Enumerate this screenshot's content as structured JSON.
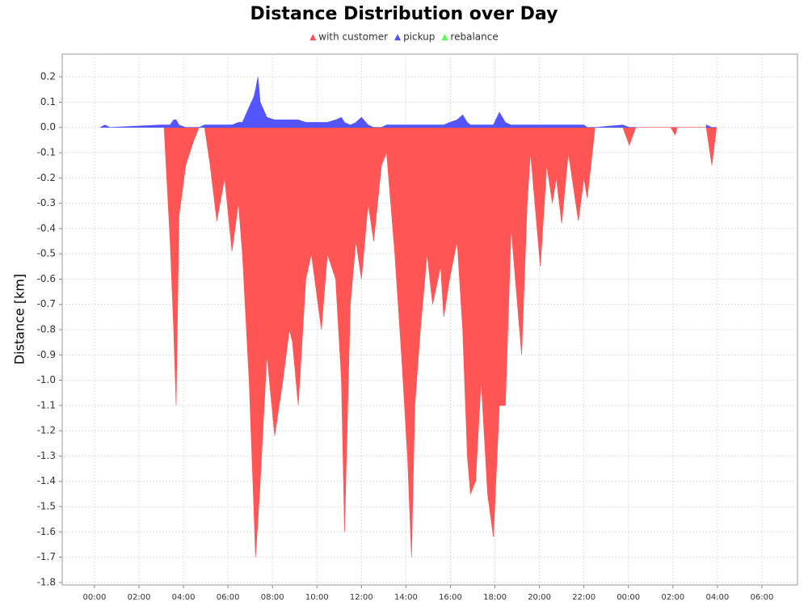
{
  "chart_data": {
    "type": "area",
    "title": "Distance Distribution over Day",
    "y_label": "Distance [km]",
    "x": [
      0.25,
      0.47,
      0.7,
      3.0,
      3.13,
      3.4,
      3.56,
      3.67,
      3.8,
      4.1,
      4.47,
      4.7,
      4.95,
      5.2,
      5.5,
      5.85,
      6.18,
      6.47,
      6.65,
      6.95,
      7.16,
      7.24,
      7.35,
      7.45,
      7.75,
      8.1,
      8.47,
      8.76,
      8.9,
      9.16,
      9.5,
      9.75,
      10.2,
      10.47,
      10.84,
      11.1,
      11.24,
      11.5,
      11.75,
      12.0,
      12.3,
      12.55,
      12.9,
      13.13,
      13.5,
      13.8,
      14.07,
      14.25,
      14.4,
      14.65,
      14.95,
      15.2,
      15.56,
      15.7,
      15.96,
      16.3,
      16.55,
      16.76,
      16.9,
      17.13,
      17.38,
      17.67,
      17.93,
      18.2,
      18.47,
      18.73,
      19.2,
      19.45,
      19.6,
      20.04,
      20.33,
      20.58,
      20.76,
      21.0,
      21.3,
      21.75,
      22.0,
      22.15,
      22.5,
      23.75,
      24.04,
      24.33,
      25.9,
      26.1,
      26.2,
      27.5,
      27.75,
      27.96
    ],
    "series": [
      {
        "name": "with customer",
        "color": "#ff5555",
        "values": [
          null,
          null,
          null,
          null,
          0,
          -0.45,
          -0.8,
          -1.1,
          -0.35,
          -0.15,
          -0.05,
          0,
          0,
          -0.15,
          -0.37,
          -0.2,
          -0.49,
          -0.3,
          -0.5,
          -1.0,
          -1.5,
          -1.7,
          -1.55,
          -1.4,
          -0.9,
          -1.22,
          -1.0,
          -0.8,
          -0.85,
          -1.1,
          -0.6,
          -0.5,
          -0.8,
          -0.5,
          -0.6,
          -1.0,
          -1.6,
          -0.7,
          -0.45,
          -0.6,
          -0.3,
          -0.45,
          -0.15,
          -0.1,
          -0.5,
          -0.9,
          -1.3,
          -1.7,
          -1.1,
          -0.8,
          -0.5,
          -0.7,
          -0.55,
          -0.75,
          -0.6,
          -0.45,
          -0.8,
          -1.3,
          -1.45,
          -1.4,
          -1.0,
          -1.45,
          -1.62,
          -1.1,
          -1.1,
          -0.4,
          -0.9,
          -0.3,
          -0.1,
          -0.55,
          -0.15,
          -0.3,
          -0.2,
          -0.38,
          -0.1,
          -0.37,
          -0.2,
          -0.28,
          0,
          0,
          -0.07,
          0,
          0,
          -0.03,
          0,
          0,
          -0.15,
          0
        ]
      },
      {
        "name": "pickup",
        "color": "#5555ff",
        "values": [
          0,
          0.01,
          0,
          0.01,
          0.01,
          0.01,
          0.03,
          0.03,
          0.01,
          0,
          0,
          0,
          0.01,
          0.01,
          0.01,
          0.01,
          0.01,
          0.02,
          0.02,
          0.08,
          0.12,
          0.15,
          0.2,
          0.1,
          0.04,
          0.03,
          0.03,
          0.03,
          0.03,
          0.03,
          0.02,
          0.02,
          0.02,
          0.02,
          0.03,
          0.04,
          0.02,
          0.01,
          0.02,
          0.04,
          0.01,
          0,
          0,
          0.01,
          0.01,
          0.01,
          0.01,
          0.01,
          0.01,
          0.01,
          0.01,
          0.01,
          0.01,
          0.01,
          0.02,
          0.03,
          0.05,
          0.02,
          0.01,
          0.01,
          0.01,
          0.01,
          0.01,
          0.06,
          0.02,
          0.01,
          0.01,
          0.01,
          0.01,
          0.01,
          0.01,
          0.01,
          0.01,
          0.01,
          0.01,
          0.01,
          0.01,
          0,
          0,
          0.01,
          0,
          0,
          null,
          null,
          null,
          0.01,
          0,
          0
        ]
      },
      {
        "name": "rebalance",
        "color": "#55ff55",
        "values": [
          null,
          null,
          null,
          null,
          null,
          null,
          null,
          null,
          null,
          null,
          null,
          null,
          null,
          null,
          null,
          null,
          null,
          null,
          null,
          null,
          null,
          null,
          null,
          null,
          null,
          null,
          null,
          null,
          null,
          null,
          null,
          null,
          null,
          null,
          null,
          null,
          null,
          null,
          null,
          null,
          null,
          null,
          null,
          null,
          null,
          null,
          null,
          null,
          null,
          null,
          null,
          null,
          null,
          null,
          null,
          null,
          null,
          null,
          null,
          null,
          null,
          null,
          null,
          null,
          null,
          null,
          null,
          null,
          null,
          null,
          null,
          null,
          null,
          null,
          null,
          null,
          null,
          null,
          null,
          null,
          null,
          null,
          null,
          null,
          null,
          null,
          null,
          null
        ]
      }
    ],
    "xlim": [
      -1.45,
      31.6
    ],
    "xticks": [
      {
        "value": 0,
        "label": "00:00"
      },
      {
        "value": 2,
        "label": "02:00"
      },
      {
        "value": 4,
        "label": "04:00"
      },
      {
        "value": 6,
        "label": "06:00"
      },
      {
        "value": 8,
        "label": "08:00"
      },
      {
        "value": 10,
        "label": "10:00"
      },
      {
        "value": 12,
        "label": "12:00"
      },
      {
        "value": 14,
        "label": "14:00"
      },
      {
        "value": 16,
        "label": "16:00"
      },
      {
        "value": 18,
        "label": "18:00"
      },
      {
        "value": 20,
        "label": "20:00"
      },
      {
        "value": 22,
        "label": "22:00"
      },
      {
        "value": 24,
        "label": "00:00"
      },
      {
        "value": 26,
        "label": "02:00"
      },
      {
        "value": 28,
        "label": "04:00"
      },
      {
        "value": 30,
        "label": "06:00"
      }
    ],
    "ylim": [
      -1.81,
      0.29
    ],
    "yticks": [
      0.2,
      0.1,
      {
        "value": 0,
        "label": "0.0"
      },
      -0.1,
      -0.2,
      -0.3,
      -0.4,
      -0.5,
      -0.6,
      -0.7,
      -0.8,
      -0.9,
      {
        "value": -1,
        "label": "-1.0"
      },
      -1.1,
      -1.2,
      -1.3,
      -1.4,
      -1.5,
      -1.6,
      -1.7,
      -1.8
    ],
    "grid": true,
    "legend": "top"
  }
}
